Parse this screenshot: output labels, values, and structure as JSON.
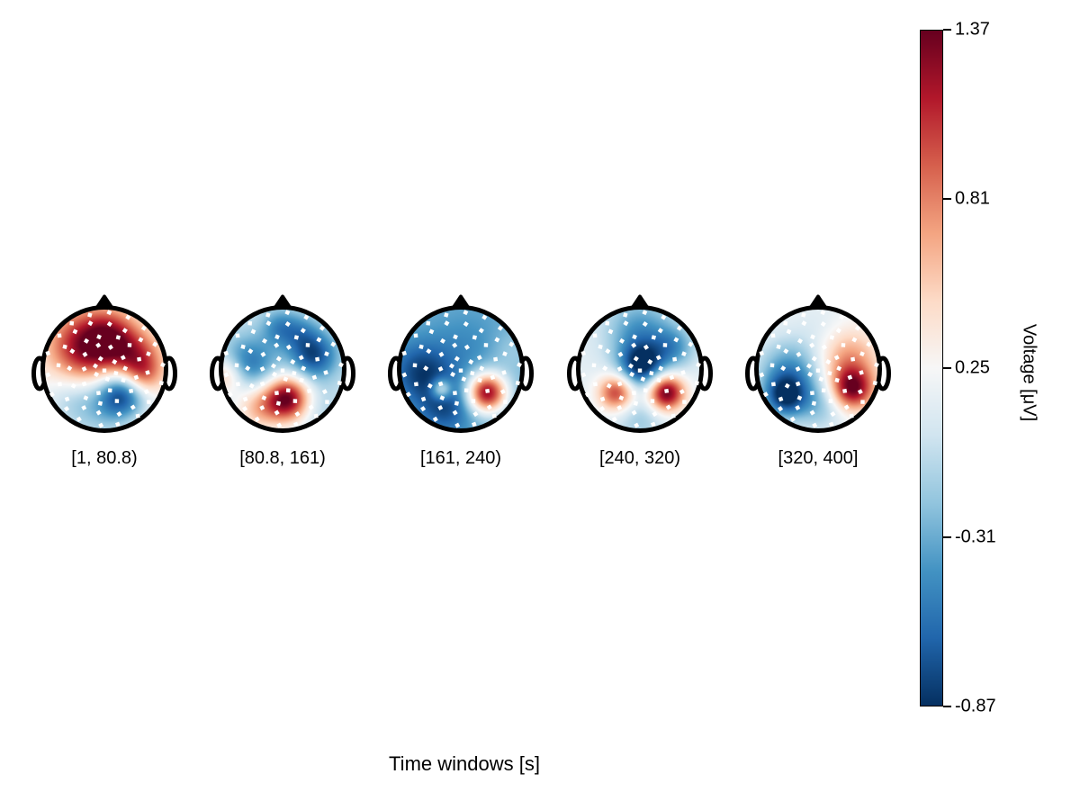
{
  "chart_data": {
    "type": "heatmap",
    "subtype": "eeg-topomap-time-series",
    "title": "",
    "xlabel": "Time windows [s]",
    "time_windows": [
      "[1, 80.8)",
      "[80.8, 161)",
      "[161, 240)",
      "[240, 320)",
      "[320, 400]"
    ],
    "colorbar": {
      "label": "Voltage [μV]",
      "vmin": -0.87,
      "vmax": 1.37,
      "ticks": [
        1.37,
        0.81,
        0.25,
        -0.31,
        -0.87
      ],
      "tick_labels": [
        "1.37",
        "0.81",
        "0.25",
        "-0.31",
        "-0.87"
      ],
      "colormap": "RdBu_r",
      "stops": [
        "#053061",
        "#2166ac",
        "#4393c3",
        "#92c5de",
        "#d1e5f0",
        "#f7f7f7",
        "#fddbc7",
        "#f4a582",
        "#d6604d",
        "#b2182b",
        "#67001f"
      ]
    },
    "style": {
      "head_outline_color": "#000000",
      "sensor_marker_color": "#ffffff",
      "background": "#ffffff"
    },
    "sensors": {
      "marker": "white-square",
      "rings": [
        {
          "r": 0.0,
          "n": 1,
          "phase": 0.0
        },
        {
          "r": 0.18,
          "n": 6,
          "phase": 0.3
        },
        {
          "r": 0.37,
          "n": 10,
          "phase": 0.0
        },
        {
          "r": 0.56,
          "n": 13,
          "phase": 0.24
        },
        {
          "r": 0.75,
          "n": 16,
          "phase": 0.1
        },
        {
          "r": 0.92,
          "n": 18,
          "phase": 0.26
        }
      ]
    },
    "maps": [
      {
        "window": "[1, 80.8)",
        "base": 0.25,
        "blobs": [
          {
            "x": -0.3,
            "y": -0.35,
            "s": 0.42,
            "a": 1.05
          },
          {
            "x": 0.12,
            "y": -0.55,
            "s": 0.3,
            "a": 0.55
          },
          {
            "x": 0.52,
            "y": -0.18,
            "s": 0.3,
            "a": 0.7
          },
          {
            "x": 0.62,
            "y": 0.12,
            "s": 0.22,
            "a": 0.45
          },
          {
            "x": 0.28,
            "y": 0.4,
            "s": 0.28,
            "a": -1.0
          },
          {
            "x": -0.48,
            "y": 0.48,
            "s": 0.35,
            "a": -0.35
          },
          {
            "x": -0.05,
            "y": 0.8,
            "s": 0.35,
            "a": -0.25
          }
        ]
      },
      {
        "window": "[80.8, 161)",
        "base": 0.02,
        "blobs": [
          {
            "x": 0.5,
            "y": -0.22,
            "s": 0.28,
            "a": -0.78
          },
          {
            "x": -0.55,
            "y": -0.08,
            "s": 0.32,
            "a": -0.62
          },
          {
            "x": -0.05,
            "y": -0.68,
            "s": 0.22,
            "a": -0.45
          },
          {
            "x": 0.3,
            "y": -0.6,
            "s": 0.22,
            "a": -0.3
          },
          {
            "x": 0.08,
            "y": 0.48,
            "s": 0.26,
            "a": 1.3
          },
          {
            "x": -0.4,
            "y": 0.62,
            "s": 0.28,
            "a": 0.55
          },
          {
            "x": -0.92,
            "y": 0.1,
            "s": 0.22,
            "a": 0.6
          },
          {
            "x": 0.55,
            "y": 0.6,
            "s": 0.25,
            "a": -0.15
          }
        ]
      },
      {
        "window": "[161, 240)",
        "base": -0.28,
        "blobs": [
          {
            "x": -0.65,
            "y": 0.05,
            "s": 0.35,
            "a": -0.5
          },
          {
            "x": -0.25,
            "y": 0.62,
            "s": 0.32,
            "a": -0.45
          },
          {
            "x": 0.1,
            "y": -0.35,
            "s": 0.45,
            "a": -0.18
          },
          {
            "x": 0.42,
            "y": 0.38,
            "s": 0.23,
            "a": 1.55
          },
          {
            "x": -0.32,
            "y": 0.32,
            "s": 0.12,
            "a": 0.7
          },
          {
            "x": 0.8,
            "y": -0.3,
            "s": 0.25,
            "a": 0.15
          }
        ]
      },
      {
        "window": "[240, 320)",
        "base": 0.14,
        "blobs": [
          {
            "x": 0.0,
            "y": -0.62,
            "s": 0.4,
            "a": -0.55
          },
          {
            "x": 0.02,
            "y": -0.05,
            "s": 0.26,
            "a": -0.95
          },
          {
            "x": 0.55,
            "y": -0.35,
            "s": 0.25,
            "a": -0.45
          },
          {
            "x": -0.38,
            "y": 0.38,
            "s": 0.21,
            "a": 0.95
          },
          {
            "x": 0.42,
            "y": 0.38,
            "s": 0.21,
            "a": 1.3
          },
          {
            "x": 0.0,
            "y": 0.8,
            "s": 0.3,
            "a": -0.3
          }
        ]
      },
      {
        "window": "[320, 400]",
        "base": 0.2,
        "blobs": [
          {
            "x": -0.45,
            "y": 0.05,
            "s": 0.38,
            "a": -0.65
          },
          {
            "x": -0.55,
            "y": 0.45,
            "s": 0.24,
            "a": -0.8
          },
          {
            "x": 0.48,
            "y": -0.15,
            "s": 0.35,
            "a": 0.55
          },
          {
            "x": 0.55,
            "y": 0.32,
            "s": 0.24,
            "a": 1.05
          },
          {
            "x": 0.02,
            "y": 0.6,
            "s": 0.3,
            "a": -0.35
          },
          {
            "x": 0.05,
            "y": -0.7,
            "s": 0.3,
            "a": -0.1
          }
        ]
      }
    ]
  }
}
